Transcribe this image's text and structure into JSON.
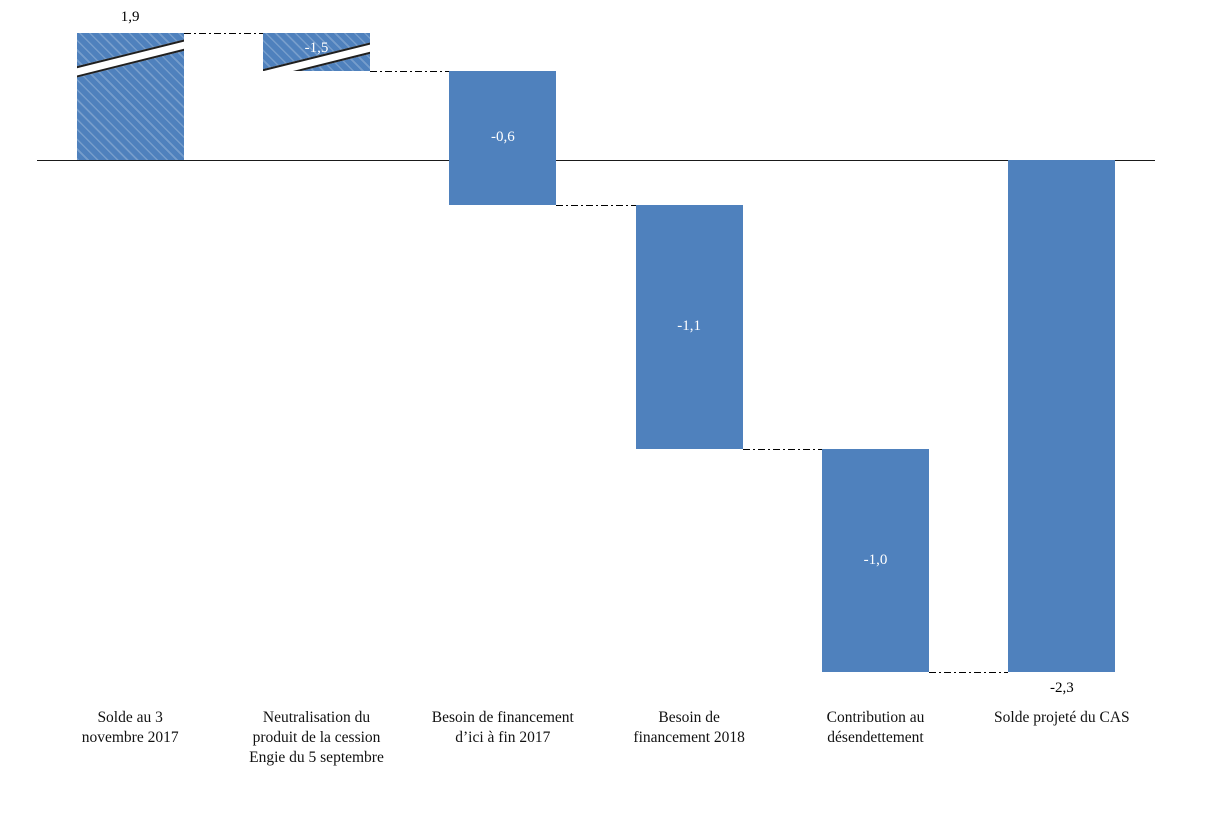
{
  "chart_data": {
    "type": "bar",
    "subtype": "waterfall",
    "title": "",
    "legend": null,
    "grid": false,
    "zero_axis_line": true,
    "bar_color": "#4f81bd",
    "connector_style": "dash-dot",
    "bars": [
      {
        "category": "Solde au 3 novembre 2017",
        "category_lines": [
          "Solde au 3",
          "novembre 2017"
        ],
        "value": 1.9,
        "value_label": "1,9",
        "from": 0,
        "to": 1.9,
        "label_position": "above",
        "truncated": true
      },
      {
        "category": "Neutralisation du produit de la cession Engie du 5 septembre",
        "category_lines": [
          "Neutralisation du",
          "produit de la cession",
          "Engie du 5 septembre"
        ],
        "value": -1.5,
        "value_label": "-1,5",
        "from": 1.9,
        "to": 0.4,
        "label_position": "inside",
        "truncated": true
      },
      {
        "category": "Besoin de financement d’ici à fin 2017",
        "category_lines": [
          "Besoin de financement",
          "d’ici à fin 2017"
        ],
        "value": -0.6,
        "value_label": "-0,6",
        "from": 0.4,
        "to": -0.2,
        "label_position": "inside",
        "truncated": false
      },
      {
        "category": "Besoin de financement 2018",
        "category_lines": [
          "Besoin de",
          "financement 2018"
        ],
        "value": -1.1,
        "value_label": "-1,1",
        "from": -0.2,
        "to": -1.3,
        "label_position": "inside",
        "truncated": false
      },
      {
        "category": "Contribution au désendettement",
        "category_lines": [
          "Contribution au",
          "désendettement"
        ],
        "value": -1.0,
        "value_label": "-1,0",
        "from": -1.3,
        "to": -2.3,
        "label_position": "inside",
        "truncated": false
      },
      {
        "category": "Solde projeté du CAS",
        "category_lines": [
          "Solde projeté du CAS"
        ],
        "value": -2.3,
        "value_label": "-2,3",
        "from": 0,
        "to": -2.3,
        "label_position": "below",
        "truncated": false
      }
    ]
  }
}
